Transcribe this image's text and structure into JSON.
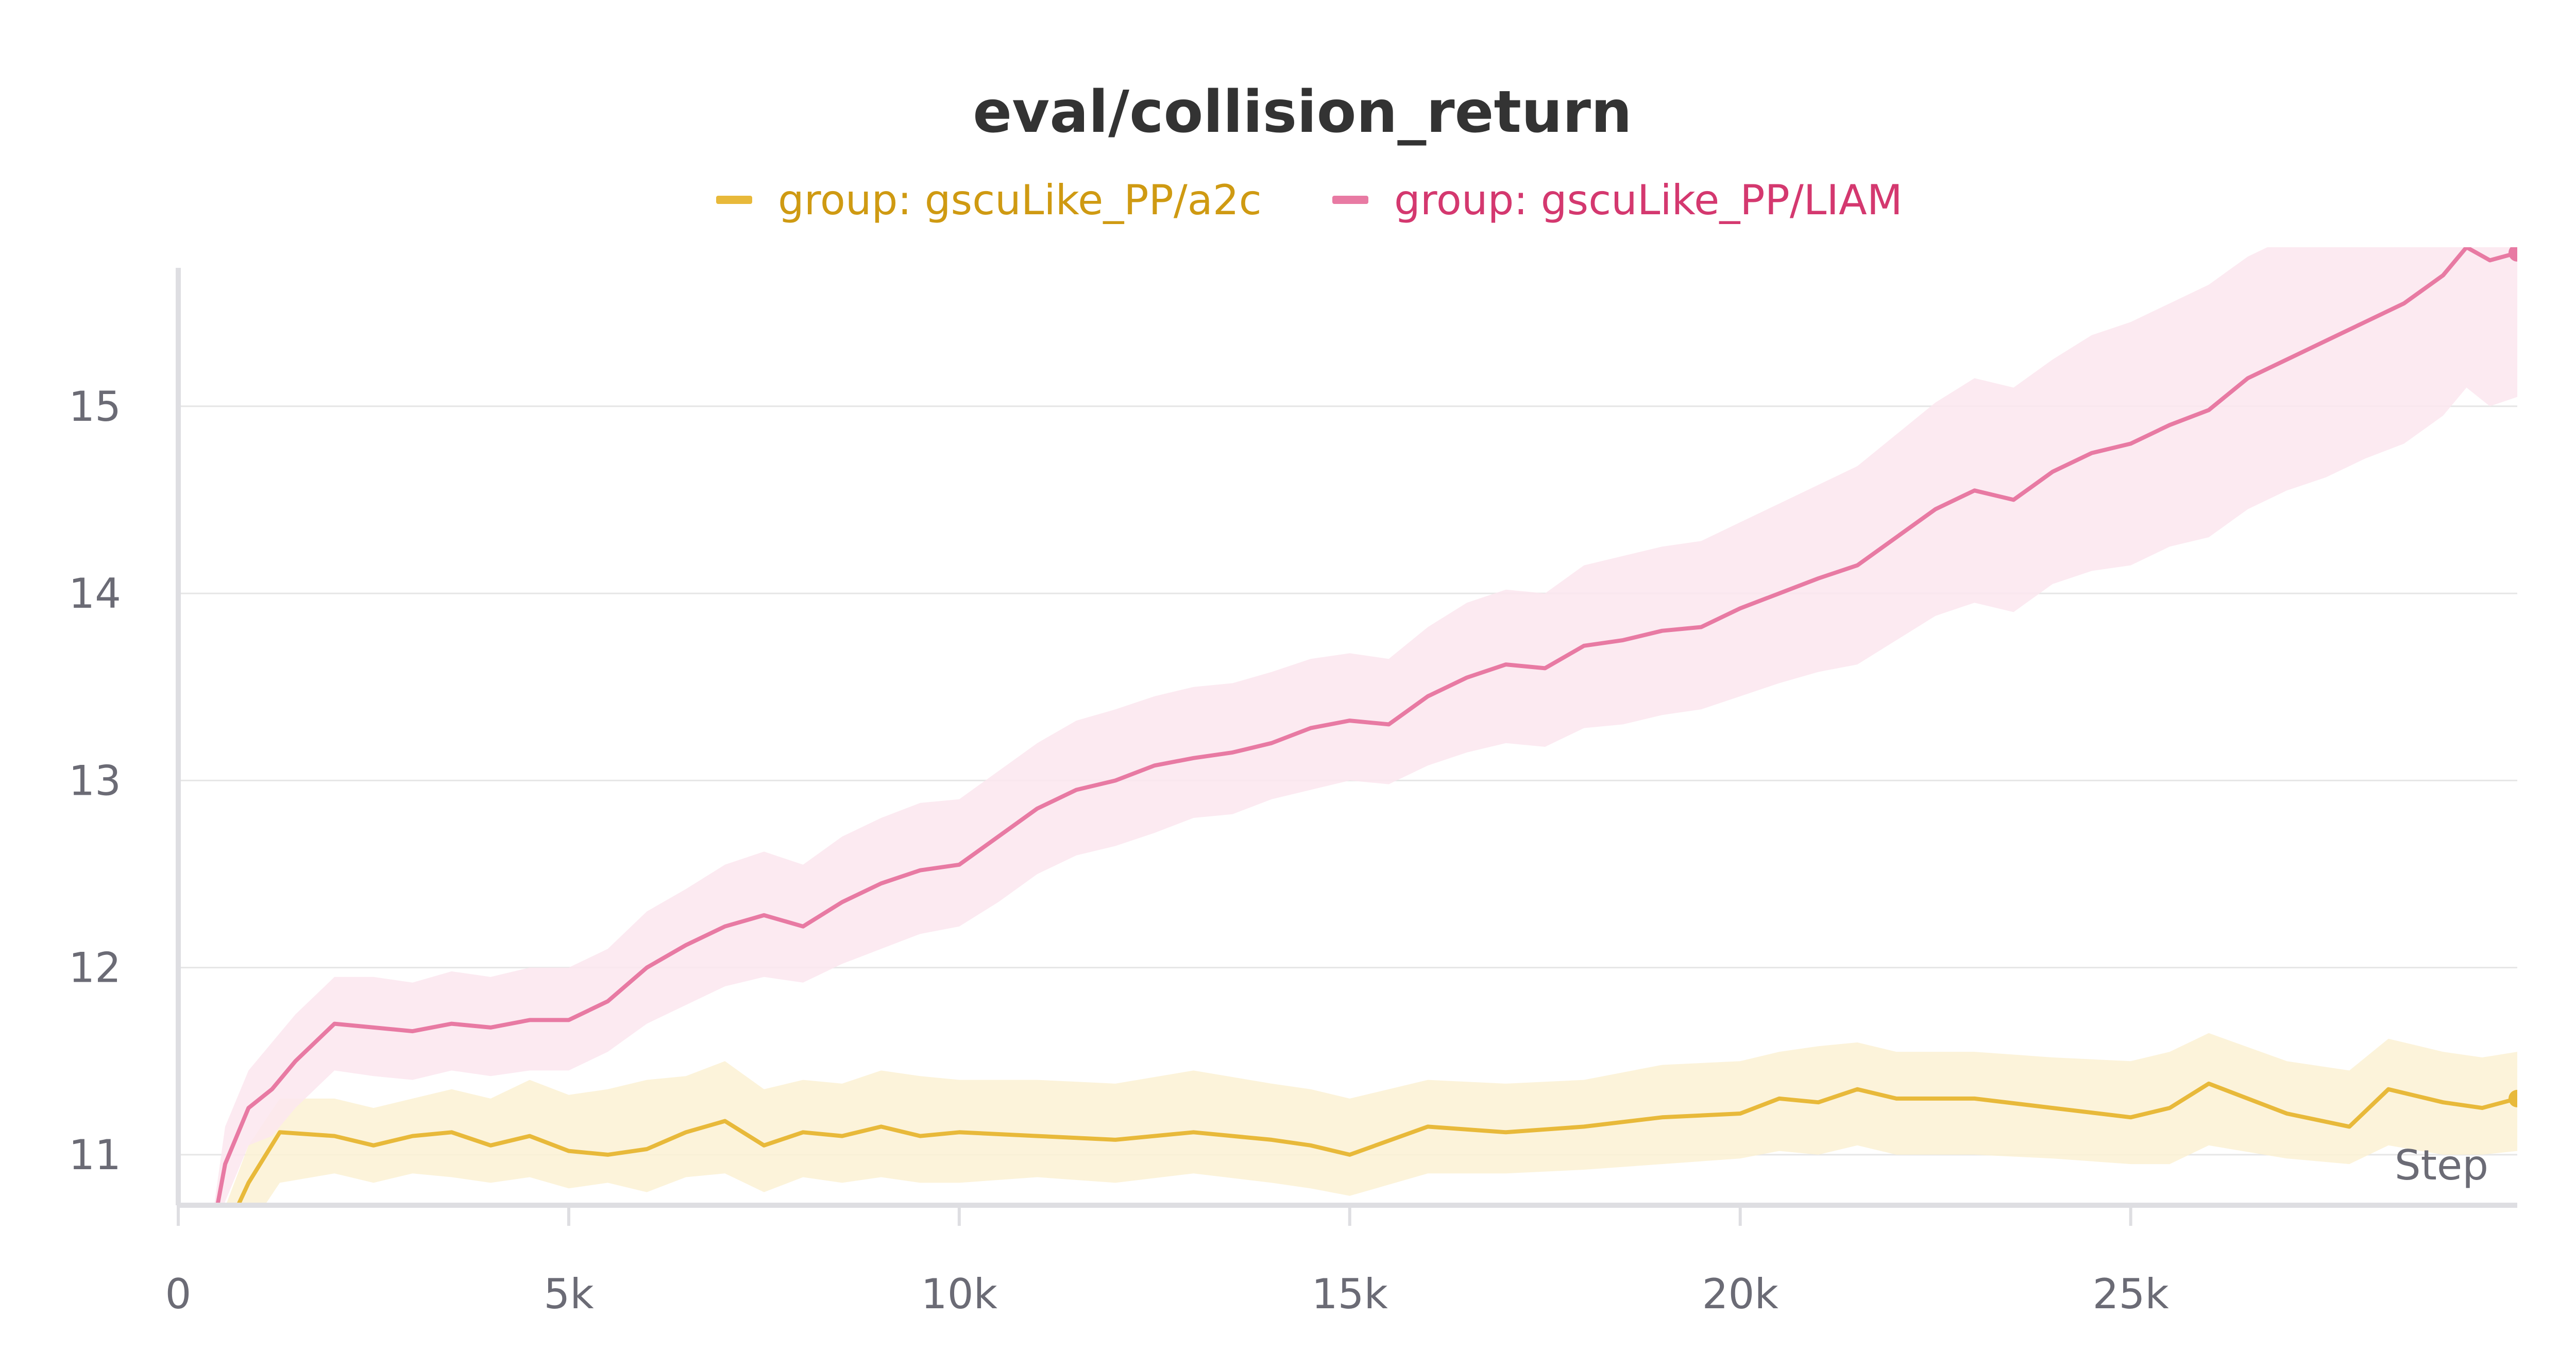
{
  "chart_data": {
    "type": "line",
    "title": "eval/collision_return",
    "xlabel": "Step",
    "ylabel": "",
    "xlim": [
      0,
      29950
    ],
    "ylim": [
      10.73,
      15.85
    ],
    "x_ticks": [
      0,
      5000,
      10000,
      15000,
      20000,
      25000
    ],
    "x_tick_labels": [
      "0",
      "5k",
      "10k",
      "15k",
      "20k",
      "25k"
    ],
    "y_ticks": [
      11,
      12,
      13,
      14,
      15
    ],
    "y_tick_labels": [
      "11",
      "12",
      "13",
      "14",
      "15"
    ],
    "grid": true,
    "legend_position": "top-center",
    "series": [
      {
        "name": "group: gscuLike_PP/a2c",
        "color": "#e8b93a",
        "band_color": "#fbf1d3",
        "label_color": "#cf9a12",
        "x": [
          400,
          900,
          1300,
          2000,
          2500,
          3000,
          3500,
          4000,
          4500,
          5000,
          5500,
          6000,
          6500,
          7000,
          7500,
          8000,
          8500,
          9000,
          9500,
          10000,
          11000,
          12000,
          13000,
          14000,
          14500,
          15000,
          16000,
          17000,
          18000,
          19000,
          20000,
          20500,
          21000,
          21500,
          22000,
          23000,
          24000,
          25000,
          25500,
          26000,
          27000,
          27800,
          28300,
          29000,
          29500,
          29950
        ],
        "values": [
          10.4,
          10.85,
          11.12,
          11.1,
          11.05,
          11.1,
          11.12,
          11.05,
          11.1,
          11.02,
          11.0,
          11.03,
          11.12,
          11.18,
          11.05,
          11.12,
          11.1,
          11.15,
          11.1,
          11.12,
          11.1,
          11.08,
          11.12,
          11.08,
          11.05,
          11.0,
          11.15,
          11.12,
          11.15,
          11.2,
          11.22,
          11.3,
          11.28,
          11.35,
          11.3,
          11.3,
          11.25,
          11.2,
          11.25,
          11.38,
          11.22,
          11.15,
          11.35,
          11.28,
          11.25,
          11.3
        ],
        "lower": [
          10.35,
          10.6,
          10.85,
          10.9,
          10.85,
          10.9,
          10.88,
          10.85,
          10.88,
          10.82,
          10.85,
          10.8,
          10.88,
          10.9,
          10.8,
          10.88,
          10.85,
          10.88,
          10.85,
          10.85,
          10.88,
          10.85,
          10.9,
          10.85,
          10.82,
          10.78,
          10.9,
          10.9,
          10.92,
          10.95,
          10.98,
          11.02,
          11.0,
          11.05,
          11.0,
          11.0,
          10.98,
          10.95,
          10.95,
          11.05,
          10.98,
          10.95,
          11.05,
          11.0,
          11.0,
          11.02
        ],
        "upper": [
          10.5,
          11.05,
          11.3,
          11.3,
          11.25,
          11.3,
          11.35,
          11.3,
          11.4,
          11.32,
          11.35,
          11.4,
          11.42,
          11.5,
          11.35,
          11.4,
          11.38,
          11.45,
          11.42,
          11.4,
          11.4,
          11.38,
          11.45,
          11.38,
          11.35,
          11.3,
          11.4,
          11.38,
          11.4,
          11.48,
          11.5,
          11.55,
          11.58,
          11.6,
          11.55,
          11.55,
          11.52,
          11.5,
          11.55,
          11.65,
          11.5,
          11.45,
          11.62,
          11.55,
          11.52,
          11.55
        ]
      },
      {
        "name": "group: gscuLike_PP/LIAM",
        "color": "#e87aa3",
        "band_color": "#fce6ee",
        "label_color": "#d4386f",
        "x": [
          400,
          600,
          900,
          1200,
          1500,
          2000,
          2500,
          3000,
          3500,
          4000,
          4500,
          5000,
          5500,
          6000,
          6500,
          7000,
          7500,
          8000,
          8500,
          9000,
          9500,
          10000,
          10500,
          11000,
          11500,
          12000,
          12500,
          13000,
          13500,
          14000,
          14500,
          15000,
          15500,
          16000,
          16500,
          17000,
          17500,
          18000,
          18500,
          19000,
          19500,
          20000,
          20500,
          21000,
          21500,
          22000,
          22500,
          23000,
          23500,
          24000,
          24500,
          25000,
          25500,
          26000,
          26500,
          27000,
          27500,
          28000,
          28500,
          29000,
          29300,
          29600,
          29950
        ],
        "values": [
          10.5,
          10.95,
          11.25,
          11.35,
          11.5,
          11.7,
          11.68,
          11.66,
          11.7,
          11.68,
          11.72,
          11.72,
          11.82,
          12.0,
          12.12,
          12.22,
          12.28,
          12.22,
          12.35,
          12.45,
          12.52,
          12.55,
          12.7,
          12.85,
          12.95,
          13.0,
          13.08,
          13.12,
          13.15,
          13.2,
          13.28,
          13.32,
          13.3,
          13.45,
          13.55,
          13.62,
          13.6,
          13.72,
          13.75,
          13.8,
          13.82,
          13.92,
          14.0,
          14.08,
          14.15,
          14.3,
          14.45,
          14.55,
          14.5,
          14.65,
          14.75,
          14.8,
          14.9,
          14.98,
          15.15,
          15.25,
          15.35,
          15.45,
          15.55,
          15.7,
          15.85,
          15.78,
          15.82
        ],
        "lower": [
          10.45,
          10.75,
          11.05,
          11.1,
          11.25,
          11.45,
          11.42,
          11.4,
          11.45,
          11.42,
          11.45,
          11.45,
          11.55,
          11.7,
          11.8,
          11.9,
          11.95,
          11.92,
          12.02,
          12.1,
          12.18,
          12.22,
          12.35,
          12.5,
          12.6,
          12.65,
          12.72,
          12.8,
          12.82,
          12.9,
          12.95,
          13.0,
          12.98,
          13.08,
          13.15,
          13.2,
          13.18,
          13.28,
          13.3,
          13.35,
          13.38,
          13.45,
          13.52,
          13.58,
          13.62,
          13.75,
          13.88,
          13.95,
          13.9,
          14.05,
          14.12,
          14.15,
          14.25,
          14.3,
          14.45,
          14.55,
          14.62,
          14.72,
          14.8,
          14.95,
          15.1,
          15.0,
          15.05
        ],
        "upper": [
          10.55,
          11.15,
          11.45,
          11.6,
          11.75,
          11.95,
          11.95,
          11.92,
          11.98,
          11.95,
          12.0,
          12.0,
          12.1,
          12.3,
          12.42,
          12.55,
          12.62,
          12.55,
          12.7,
          12.8,
          12.88,
          12.9,
          13.05,
          13.2,
          13.32,
          13.38,
          13.45,
          13.5,
          13.52,
          13.58,
          13.65,
          13.68,
          13.65,
          13.82,
          13.95,
          14.02,
          14.0,
          14.15,
          14.2,
          14.25,
          14.28,
          14.38,
          14.48,
          14.58,
          14.68,
          14.85,
          15.02,
          15.15,
          15.1,
          15.25,
          15.38,
          15.45,
          15.55,
          15.65,
          15.8,
          15.9,
          15.95,
          16.0,
          16.02,
          16.05,
          16.08,
          16.0,
          16.02
        ]
      }
    ]
  }
}
